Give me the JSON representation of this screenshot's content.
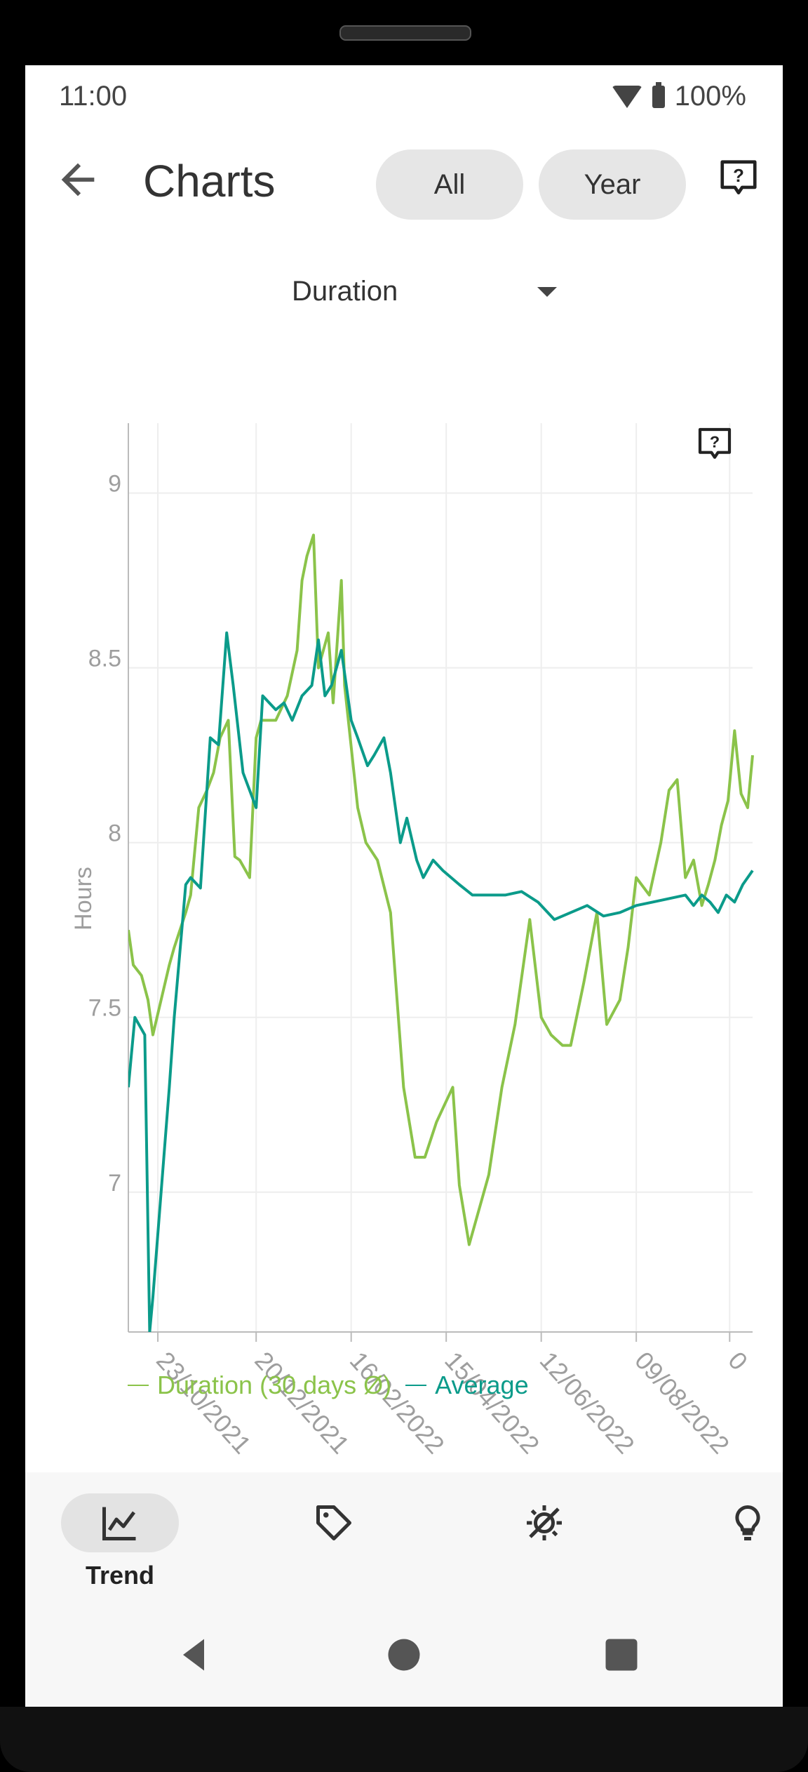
{
  "status": {
    "time": "11:00",
    "battery": "100%"
  },
  "appbar": {
    "title": "Charts",
    "filters": [
      "All",
      "Year"
    ]
  },
  "dropdown": {
    "selected": "Duration"
  },
  "chart_data": {
    "type": "line",
    "ylabel": "Hours",
    "ylim": [
      6.6,
      9.2
    ],
    "yticks": [
      7,
      7.5,
      8,
      8.5,
      9
    ],
    "yticklabels": [
      "7",
      "7.5",
      "8",
      "8.5",
      "9"
    ],
    "xticklabels": [
      "23/10/2021",
      "20/12/2021",
      "16/02/2022",
      "15/04/2022",
      "12/06/2022",
      "09/08/2022",
      "0"
    ],
    "xlim": [
      0,
      381
    ],
    "x_tick_days": [
      18,
      78,
      136,
      194,
      252,
      310,
      367
    ],
    "grid": true,
    "legend_position": "bottom",
    "series": [
      {
        "name": "Duration (30 days Ø)",
        "color": "#8bc34a",
        "x": [
          0,
          3,
          8,
          12,
          15,
          20,
          25,
          28,
          35,
          38,
          43,
          48,
          52,
          56,
          61,
          65,
          68,
          74,
          78,
          81,
          90,
          97,
          103,
          106,
          109,
          113,
          116,
          122,
          125,
          130,
          132,
          140,
          145,
          152,
          160,
          168,
          175,
          181,
          188,
          193,
          198,
          202,
          208,
          220,
          228,
          236,
          245,
          252,
          258,
          265,
          270,
          278,
          286,
          292,
          300,
          305,
          310,
          318,
          325,
          330,
          335,
          340,
          345,
          350,
          354,
          358,
          362,
          366,
          370,
          374,
          378,
          381
        ],
        "y": [
          7.75,
          7.65,
          7.62,
          7.55,
          7.45,
          7.55,
          7.65,
          7.7,
          7.8,
          7.85,
          8.1,
          8.15,
          8.2,
          8.3,
          8.35,
          7.96,
          7.95,
          7.9,
          8.3,
          8.35,
          8.35,
          8.42,
          8.55,
          8.75,
          8.82,
          8.88,
          8.5,
          8.6,
          8.4,
          8.75,
          8.45,
          8.1,
          8.0,
          7.95,
          7.8,
          7.3,
          7.1,
          7.1,
          7.2,
          7.25,
          7.3,
          7.02,
          6.85,
          7.05,
          7.3,
          7.48,
          7.78,
          7.5,
          7.45,
          7.42,
          7.42,
          7.6,
          7.8,
          7.48,
          7.55,
          7.7,
          7.9,
          7.85,
          8.0,
          8.15,
          8.18,
          7.9,
          7.95,
          7.82,
          7.88,
          7.95,
          8.05,
          8.12,
          8.32,
          8.14,
          8.1,
          8.25
        ]
      },
      {
        "name": "Average",
        "color": "#0b9b8a",
        "x": [
          0,
          4,
          10,
          13,
          15,
          20,
          25,
          28,
          35,
          38,
          44,
          50,
          55,
          60,
          64,
          70,
          78,
          82,
          90,
          95,
          100,
          106,
          112,
          116,
          120,
          124,
          130,
          136,
          140,
          146,
          150,
          156,
          160,
          166,
          170,
          176,
          180,
          186,
          192,
          197,
          202,
          210,
          220,
          230,
          240,
          250,
          260,
          270,
          280,
          290,
          300,
          310,
          320,
          330,
          340,
          345,
          350,
          355,
          360,
          365,
          370,
          375,
          381
        ],
        "y": [
          7.3,
          7.5,
          7.45,
          6.6,
          6.7,
          7.0,
          7.3,
          7.5,
          7.88,
          7.9,
          7.87,
          8.3,
          8.28,
          8.6,
          8.45,
          8.2,
          8.1,
          8.42,
          8.38,
          8.4,
          8.35,
          8.42,
          8.45,
          8.58,
          8.42,
          8.45,
          8.55,
          8.35,
          8.3,
          8.22,
          8.25,
          8.3,
          8.2,
          8.0,
          8.07,
          7.95,
          7.9,
          7.95,
          7.92,
          7.9,
          7.88,
          7.85,
          7.85,
          7.85,
          7.86,
          7.83,
          7.78,
          7.8,
          7.82,
          7.79,
          7.8,
          7.82,
          7.83,
          7.84,
          7.85,
          7.82,
          7.85,
          7.83,
          7.8,
          7.85,
          7.83,
          7.88,
          7.92
        ]
      }
    ]
  },
  "bottom_nav": {
    "items": [
      {
        "label": "Trend",
        "icon": "chart-icon",
        "active": true
      },
      {
        "label": "",
        "icon": "tag-icon",
        "active": false
      },
      {
        "label": "",
        "icon": "weather-icon",
        "active": false
      },
      {
        "label": "",
        "icon": "bulb-icon",
        "active": false
      }
    ]
  }
}
